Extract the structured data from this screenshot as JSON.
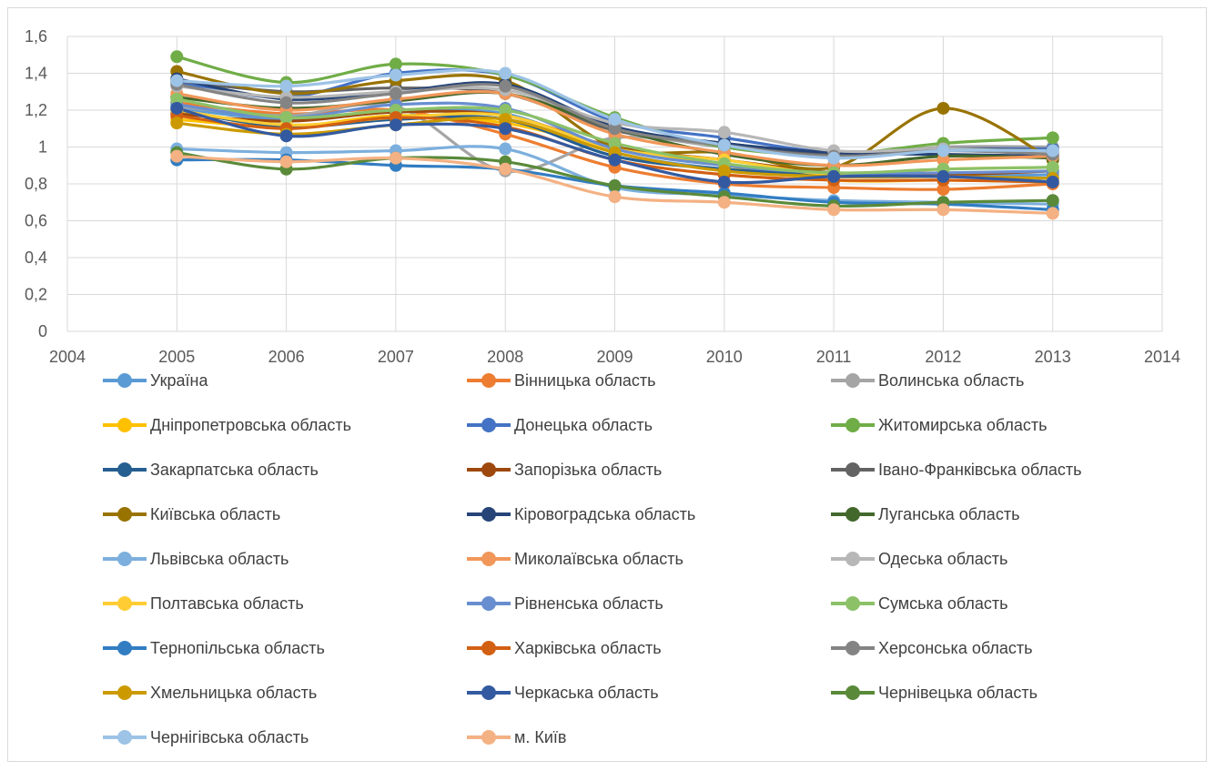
{
  "chart_data": {
    "type": "line",
    "title": "",
    "xlabel": "",
    "ylabel": "",
    "xlim": [
      2004,
      2014
    ],
    "ylim": [
      0,
      1.6
    ],
    "x_ticks": [
      "2004",
      "2005",
      "2006",
      "2007",
      "2008",
      "2009",
      "2010",
      "2011",
      "2012",
      "2013",
      "2014"
    ],
    "y_ticks": [
      "0",
      "0,2",
      "0,4",
      "0,6",
      "0,8",
      "1",
      "1,2",
      "1,4",
      "1,6"
    ],
    "grid": "horizontal and vertical",
    "legend_position": "bottom",
    "x": [
      2005,
      2006,
      2007,
      2008,
      2009,
      2010,
      2011,
      2012,
      2013
    ],
    "series": [
      {
        "name": "Україна",
        "color": "#5b9bd5",
        "values": [
          1.21,
          1.15,
          1.19,
          1.18,
          0.97,
          0.88,
          0.84,
          0.84,
          0.85
        ]
      },
      {
        "name": "Вінницька область",
        "color": "#ed7d31",
        "values": [
          1.24,
          1.18,
          1.2,
          1.07,
          0.89,
          0.8,
          0.78,
          0.77,
          0.8
        ]
      },
      {
        "name": "Волинська область",
        "color": "#a5a5a5",
        "values": [
          1.22,
          1.17,
          1.22,
          0.87,
          1.05,
          1.0,
          0.95,
          1.0,
          1.0
        ]
      },
      {
        "name": "Дніпропетровська область",
        "color": "#ffc000",
        "values": [
          1.15,
          1.11,
          1.17,
          1.13,
          0.99,
          0.9,
          0.82,
          0.82,
          0.81
        ]
      },
      {
        "name": "Донецька область",
        "color": "#4472c4",
        "values": [
          1.35,
          1.27,
          1.4,
          1.39,
          1.14,
          1.05,
          0.97,
          0.99,
          0.99
        ]
      },
      {
        "name": "Житомирська область",
        "color": "#70ad47",
        "values": [
          1.49,
          1.35,
          1.45,
          1.39,
          1.16,
          1.0,
          0.96,
          1.02,
          1.05
        ]
      },
      {
        "name": "Закарпатська область",
        "color": "#255e91",
        "values": [
          1.2,
          1.11,
          1.15,
          1.15,
          0.95,
          0.88,
          0.85,
          0.84,
          0.83
        ]
      },
      {
        "name": "Запорізька область",
        "color": "#9e480e",
        "values": [
          1.18,
          1.14,
          1.19,
          1.17,
          1.0,
          0.93,
          0.86,
          0.85,
          0.87
        ]
      },
      {
        "name": "Івано-Франківська область",
        "color": "#636363",
        "values": [
          1.36,
          1.3,
          1.32,
          1.29,
          1.09,
          1.02,
          0.96,
          0.99,
          0.98
        ]
      },
      {
        "name": "Київська область",
        "color": "#997300",
        "values": [
          1.41,
          1.29,
          1.36,
          1.36,
          1.0,
          0.97,
          0.89,
          1.21,
          0.93
        ]
      },
      {
        "name": "Кіровоградська область",
        "color": "#264478",
        "values": [
          1.37,
          1.26,
          1.3,
          1.34,
          1.11,
          1.02,
          0.97,
          0.96,
          0.95
        ]
      },
      {
        "name": "Луганська область",
        "color": "#43682b",
        "values": [
          1.27,
          1.21,
          1.25,
          1.29,
          1.1,
          0.96,
          0.9,
          0.95,
          0.94
        ]
      },
      {
        "name": "Львівська область",
        "color": "#7cafdd",
        "values": [
          0.99,
          0.97,
          0.98,
          0.99,
          0.78,
          0.74,
          0.71,
          0.7,
          0.69
        ]
      },
      {
        "name": "Миколаївська область",
        "color": "#f1975a",
        "values": [
          1.29,
          1.2,
          1.26,
          1.29,
          1.07,
          0.97,
          0.9,
          0.93,
          0.95
        ]
      },
      {
        "name": "Одеська область",
        "color": "#b7b7b7",
        "values": [
          1.33,
          1.27,
          1.3,
          1.31,
          1.13,
          1.08,
          0.98,
          0.99,
          0.97
        ]
      },
      {
        "name": "Полтавська область",
        "color": "#ffcd33",
        "values": [
          1.2,
          1.12,
          1.16,
          1.17,
          0.99,
          0.93,
          0.85,
          0.88,
          0.89
        ]
      },
      {
        "name": "Рівненська область",
        "color": "#698ed0",
        "values": [
          1.23,
          1.16,
          1.23,
          1.21,
          0.99,
          0.9,
          0.86,
          0.86,
          0.87
        ]
      },
      {
        "name": "Сумська область",
        "color": "#8cc168",
        "values": [
          1.26,
          1.16,
          1.2,
          1.2,
          1.02,
          0.91,
          0.86,
          0.88,
          0.89
        ]
      },
      {
        "name": "Тернопільська область",
        "color": "#327dc2",
        "values": [
          0.93,
          0.93,
          0.9,
          0.88,
          0.79,
          0.75,
          0.7,
          0.69,
          0.66
        ]
      },
      {
        "name": "Харківська область",
        "color": "#d26012",
        "values": [
          1.17,
          1.1,
          1.16,
          1.11,
          0.93,
          0.85,
          0.82,
          0.82,
          0.81
        ]
      },
      {
        "name": "Херсонська область",
        "color": "#848484",
        "values": [
          1.34,
          1.24,
          1.29,
          1.33,
          1.1,
          1.01,
          0.95,
          0.98,
          0.96
        ]
      },
      {
        "name": "Хмельницька область",
        "color": "#cc9a00",
        "values": [
          1.13,
          1.07,
          1.12,
          1.15,
          0.97,
          0.87,
          0.84,
          0.84,
          0.83
        ]
      },
      {
        "name": "Черкаська область",
        "color": "#335aa1",
        "values": [
          1.21,
          1.06,
          1.12,
          1.1,
          0.93,
          0.81,
          0.84,
          0.84,
          0.81
        ]
      },
      {
        "name": "Чернівецька область",
        "color": "#5a8a39",
        "values": [
          0.97,
          0.88,
          0.94,
          0.92,
          0.79,
          0.73,
          0.68,
          0.7,
          0.71
        ]
      },
      {
        "name": "Чернігівська область",
        "color": "#9dc3e6",
        "values": [
          1.36,
          1.33,
          1.39,
          1.4,
          1.15,
          1.01,
          0.94,
          0.98,
          0.98
        ]
      },
      {
        "name": "м. Київ",
        "color": "#f4b183",
        "values": [
          0.95,
          0.92,
          0.94,
          0.88,
          0.73,
          0.7,
          0.66,
          0.66,
          0.64
        ]
      }
    ]
  }
}
